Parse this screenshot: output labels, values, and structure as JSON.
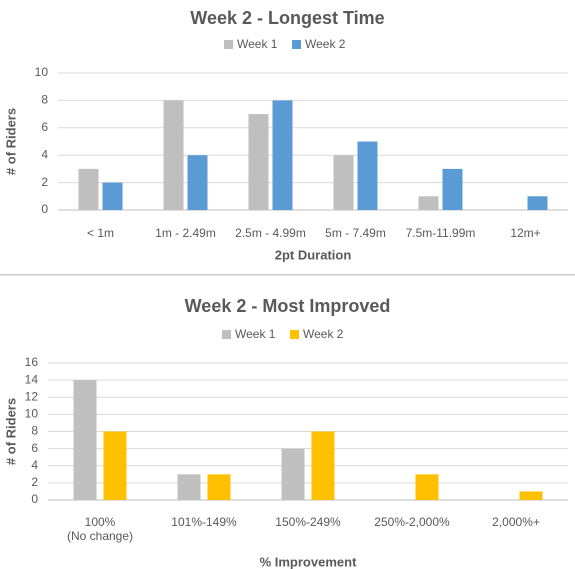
{
  "chart_data": [
    {
      "type": "bar",
      "title": "Week 2 - Longest Time",
      "xlabel": "2pt Duration",
      "ylabel": "# of Riders",
      "ylim": [
        0,
        10
      ],
      "yticks": [
        0,
        2,
        4,
        6,
        8,
        10
      ],
      "categories": [
        "< 1m",
        "1m - 2.49m",
        "2.5m - 4.99m",
        "5m - 7.49m",
        "7.5m-11.99m",
        "12m+"
      ],
      "series": [
        {
          "name": "Week 1",
          "color": "#bfbfbf",
          "values": [
            3,
            8,
            7,
            4,
            1,
            0
          ]
        },
        {
          "name": "Week 2",
          "color": "#5b9bd5",
          "values": [
            2,
            4,
            8,
            5,
            3,
            1
          ]
        }
      ],
      "legend": "top",
      "grid": true
    },
    {
      "type": "bar",
      "title": "Week 2 - Most Improved",
      "xlabel": "% Improvement",
      "ylabel": "# of Riders",
      "ylim": [
        0,
        16
      ],
      "yticks": [
        0,
        2,
        4,
        6,
        8,
        10,
        12,
        14,
        16
      ],
      "categories": [
        [
          "100%",
          "(No change)"
        ],
        [
          "101%-149%"
        ],
        [
          "150%-249%"
        ],
        [
          "250%-2,000%"
        ],
        [
          "2,000%+"
        ]
      ],
      "series": [
        {
          "name": "Week 1",
          "color": "#bfbfbf",
          "values": [
            14,
            3,
            6,
            0,
            0
          ]
        },
        {
          "name": "Week 2",
          "color": "#ffc000",
          "values": [
            8,
            3,
            8,
            3,
            1
          ]
        }
      ],
      "legend": "top",
      "grid": true
    }
  ]
}
